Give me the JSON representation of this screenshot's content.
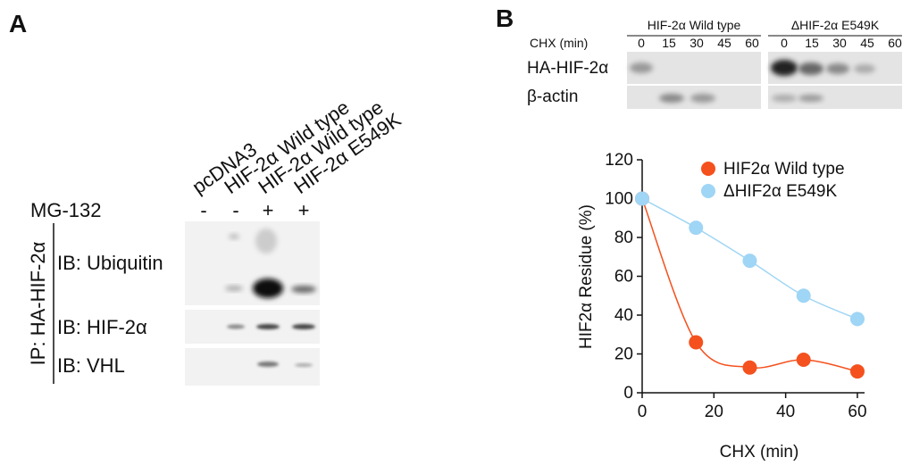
{
  "panel_a": {
    "label": "A",
    "lanes": [
      "pcDNA3",
      "HIF-2α Wild type",
      "HIF-2α Wild type",
      "HIF-2α E549K"
    ],
    "treatment": "MG-132",
    "treatment_signs": [
      "-",
      "-",
      "+",
      "+"
    ],
    "ip_label": "IP: HA-HIF-2α",
    "blots": [
      "IB: Ubiquitin",
      "IB: HIF-2α",
      "IB: VHL"
    ]
  },
  "panel_b": {
    "label": "B",
    "groups": [
      "HIF-2α Wild type",
      "ΔHIF-2α E549K"
    ],
    "time_label": "CHX (min)",
    "times": [
      "0",
      "15",
      "30",
      "45",
      "60"
    ],
    "rows": [
      "HA-HIF-2α",
      "β-actin"
    ]
  },
  "chart_data": {
    "type": "scatter",
    "xlabel": "CHX (min)",
    "ylabel": "HIF2α  Residue (%)",
    "x": [
      0,
      15,
      30,
      45,
      60
    ],
    "series": [
      {
        "name": "HIF2α Wild type",
        "color": "#f4511e",
        "values": [
          100,
          26,
          13,
          17,
          11
        ]
      },
      {
        "name": "ΔHIF2α  E549K",
        "color": "#9fd5f5",
        "values": [
          100,
          85,
          68,
          50,
          38
        ]
      }
    ],
    "xlim": [
      0,
      62
    ],
    "xticks": [
      0,
      20,
      40,
      60
    ],
    "ylim": [
      0,
      120
    ],
    "yticks": [
      0,
      20,
      40,
      60,
      80,
      100,
      120
    ],
    "legend": "upper right"
  }
}
